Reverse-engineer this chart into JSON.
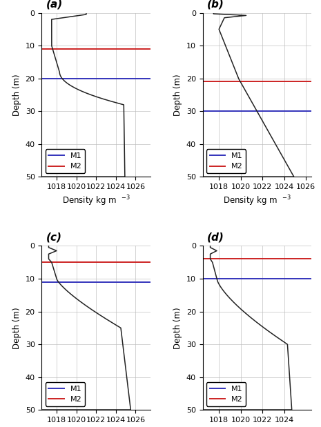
{
  "panels": [
    {
      "label": "(a)",
      "m1_depth": 20,
      "m2_depth": 11,
      "xlim": [
        1016.5,
        1027.5
      ],
      "xticks": [
        1018,
        1020,
        1022,
        1024,
        1026
      ],
      "shape": "panel_a"
    },
    {
      "label": "(b)",
      "m1_depth": 30,
      "m2_depth": 21,
      "xlim": [
        1016.5,
        1026.5
      ],
      "xticks": [
        1018,
        1020,
        1022,
        1024,
        1026
      ],
      "shape": "panel_b"
    },
    {
      "label": "(c)",
      "m1_depth": 11,
      "m2_depth": 5,
      "xlim": [
        1016.5,
        1027.5
      ],
      "xticks": [
        1018,
        1020,
        1022,
        1024,
        1026
      ],
      "shape": "panel_c"
    },
    {
      "label": "(d)",
      "m1_depth": 10,
      "m2_depth": 4,
      "xlim": [
        1016.5,
        1026.5
      ],
      "xticks": [
        1018,
        1020,
        1022,
        1024
      ],
      "shape": "panel_d"
    }
  ],
  "ylim": [
    50,
    0
  ],
  "yticks": [
    0,
    10,
    20,
    30,
    40,
    50
  ],
  "ylabel": "Depth (m)",
  "xlabel": "Density kg m",
  "m1_color": "#3333bb",
  "m2_color": "#cc2222",
  "profile_color": "#222222",
  "grid_color": "#bbbbbb",
  "background_color": "#ffffff",
  "fig_width": 4.65,
  "fig_height": 6.19
}
